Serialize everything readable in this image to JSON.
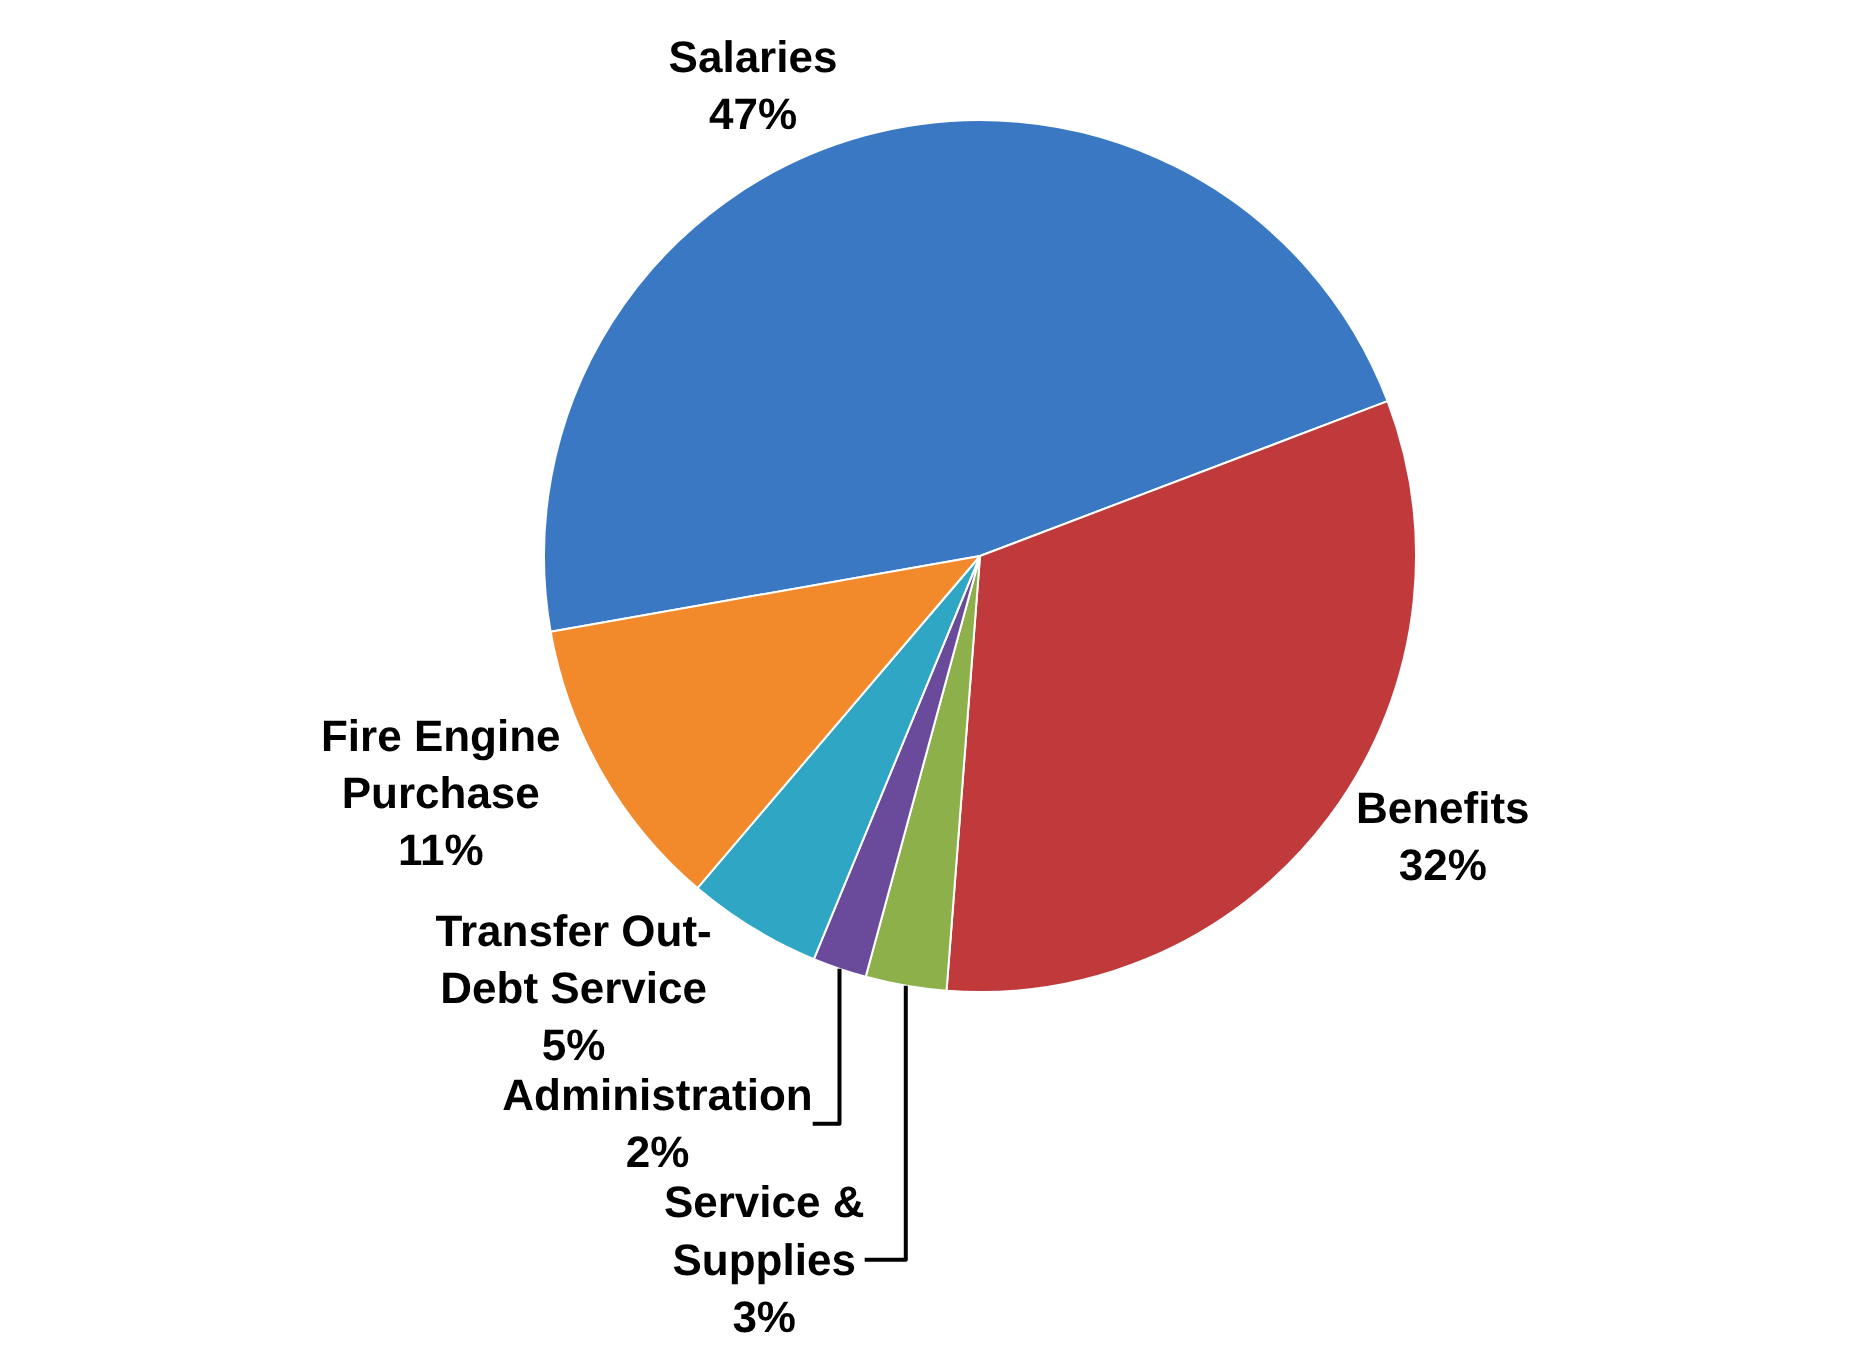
{
  "chart_data": {
    "type": "pie",
    "categories": [
      "Salaries",
      "Benefits",
      "Service & Supplies",
      "Administration",
      "Transfer Out- Debt Service",
      "Fire Engine Purchase"
    ],
    "values": [
      47,
      32,
      3,
      2,
      5,
      11
    ],
    "value_labels": [
      "47%",
      "32%",
      "3%",
      "2%",
      "5%",
      "11%"
    ],
    "colors": [
      "#3a78c4",
      "#c0393b",
      "#8db04a",
      "#6a4a9a",
      "#2fa6c4",
      "#f28a2c"
    ],
    "legend": false
  }
}
